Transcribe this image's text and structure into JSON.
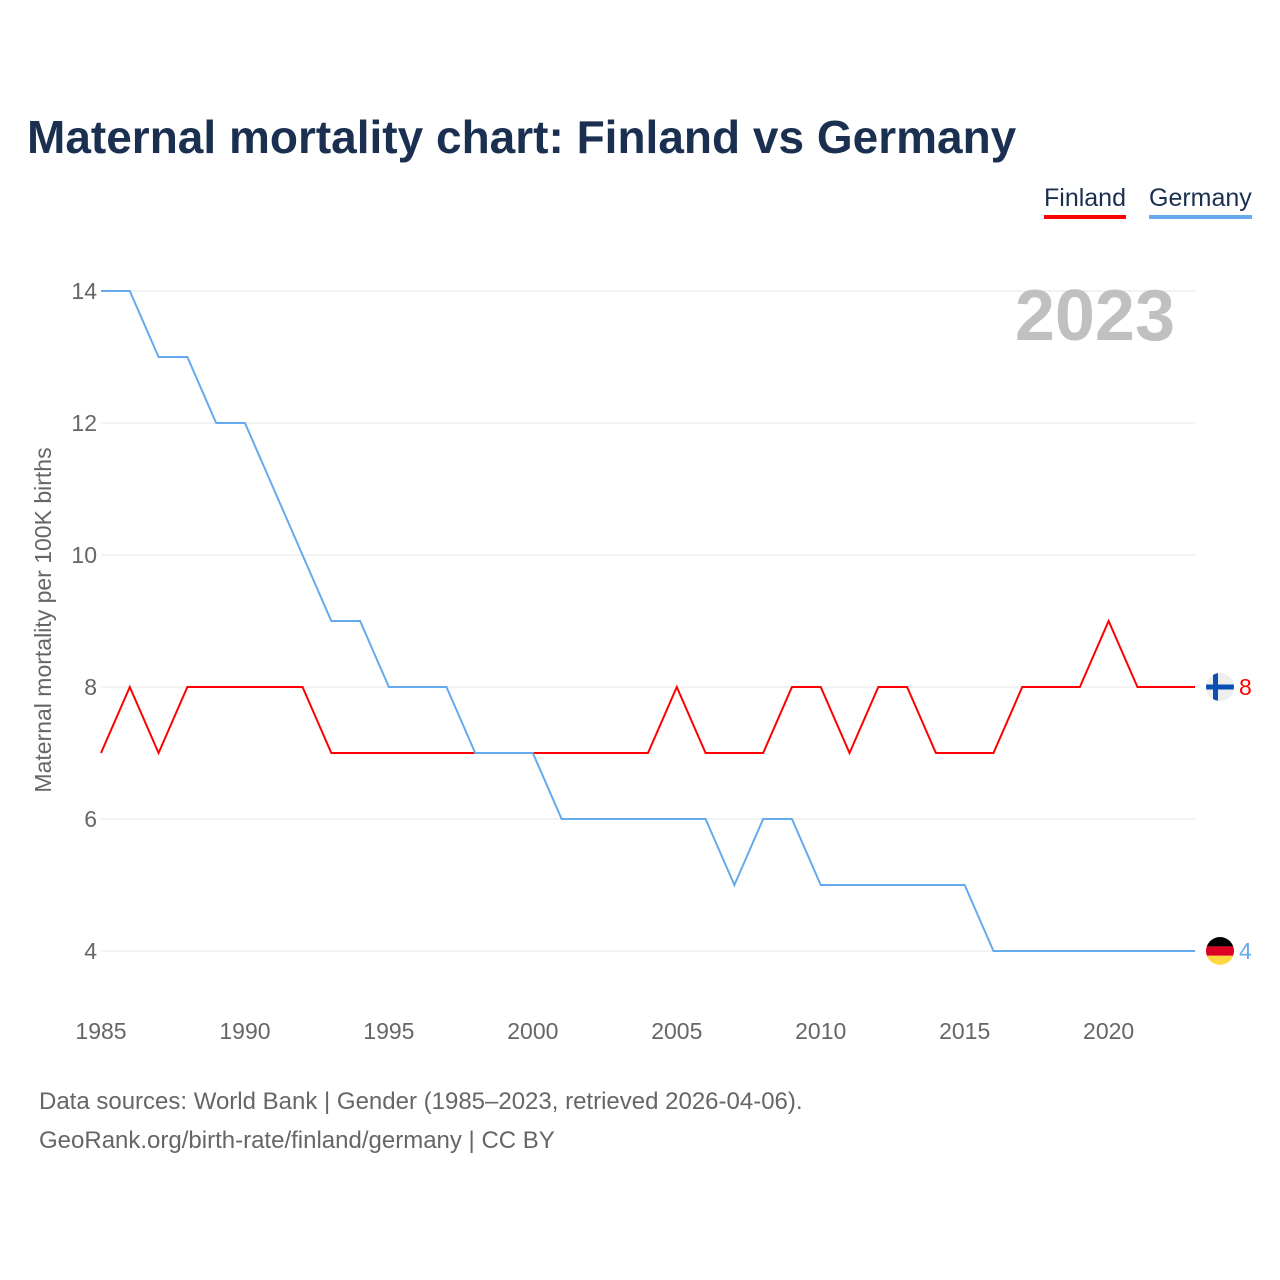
{
  "chart_data": {
    "type": "line",
    "title": "Maternal mortality chart: Finland vs Germany",
    "xlabel": "",
    "ylabel": "Maternal mortality per 100K births",
    "xlim": [
      1985,
      2023
    ],
    "ylim": [
      4,
      14
    ],
    "x_ticks": [
      1985,
      1990,
      1995,
      2000,
      2005,
      2010,
      2015,
      2020
    ],
    "y_ticks": [
      4,
      6,
      8,
      10,
      12,
      14
    ],
    "grid": true,
    "legend_position": "top-right",
    "year_label": "2023",
    "x": [
      1985,
      1986,
      1987,
      1988,
      1989,
      1990,
      1991,
      1992,
      1993,
      1994,
      1995,
      1996,
      1997,
      1998,
      1999,
      2000,
      2001,
      2002,
      2003,
      2004,
      2005,
      2006,
      2007,
      2008,
      2009,
      2010,
      2011,
      2012,
      2013,
      2014,
      2015,
      2016,
      2017,
      2018,
      2019,
      2020,
      2021,
      2022,
      2023
    ],
    "series": [
      {
        "name": "Finland",
        "color": "#ff0000",
        "end_label": "8",
        "values": [
          7,
          8,
          7,
          8,
          8,
          8,
          8,
          8,
          7,
          7,
          7,
          7,
          7,
          7,
          7,
          7,
          7,
          7,
          7,
          7,
          8,
          7,
          7,
          7,
          8,
          8,
          7,
          8,
          8,
          7,
          7,
          7,
          8,
          8,
          8,
          9,
          8,
          8,
          8
        ]
      },
      {
        "name": "Germany",
        "color": "#66aaee",
        "end_label": "4",
        "values": [
          14,
          14,
          13,
          13,
          12,
          12,
          11,
          10,
          9,
          9,
          8,
          8,
          8,
          7,
          7,
          7,
          6,
          6,
          6,
          6,
          6,
          6,
          5,
          6,
          6,
          5,
          5,
          5,
          5,
          5,
          5,
          4,
          4,
          4,
          4,
          4,
          4,
          4,
          4
        ]
      }
    ]
  },
  "footer": {
    "line1": "Data sources: World Bank | Gender (1985–2023, retrieved 2026-04-06).",
    "line2": "GeoRank.org/birth-rate/finland/germany | CC BY"
  }
}
